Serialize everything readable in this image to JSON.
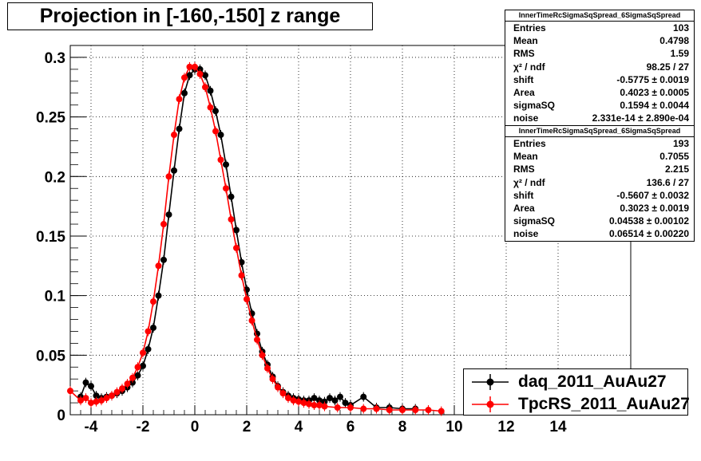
{
  "header": {
    "title": "Projection in [-160,-150] z range"
  },
  "stats_boxes": [
    {
      "name": "InnerTimeRcSigmaSqSpread_6SigmaSqSpread",
      "rows": [
        {
          "label": "Entries",
          "value": "103"
        },
        {
          "label": "Mean",
          "value": "0.4798"
        },
        {
          "label": "RMS",
          "value": "1.59"
        },
        {
          "label": "χ² / ndf",
          "value": "98.25 / 27"
        },
        {
          "label": "shift",
          "value": "-0.5775 ± 0.0019"
        },
        {
          "label": "Area",
          "value": "0.4023 ± 0.0005"
        },
        {
          "label": "sigmaSQ",
          "value": "0.1594 ± 0.0044"
        },
        {
          "label": "noise",
          "value": "2.331e-14 ± 2.890e-04"
        }
      ]
    },
    {
      "name": "InnerTimeRcSigmaSqSpread_6SigmaSqSpread",
      "rows": [
        {
          "label": "Entries",
          "value": "193"
        },
        {
          "label": "Mean",
          "value": "0.7055"
        },
        {
          "label": "RMS",
          "value": "2.215"
        },
        {
          "label": "χ² / ndf",
          "value": "136.6 / 27"
        },
        {
          "label": "shift",
          "value": "-0.5607 ± 0.0032"
        },
        {
          "label": "Area",
          "value": "0.3023 ± 0.0019"
        },
        {
          "label": "sigmaSQ",
          "value": "0.04538 ± 0.00102"
        },
        {
          "label": "noise",
          "value": "0.06514 ± 0.00220"
        }
      ]
    }
  ],
  "legend": [
    {
      "label": "daq_2011_AuAu27",
      "color": "#000000"
    },
    {
      "label": "TpcRS_2011_AuAu27",
      "color": "#ff0000"
    }
  ],
  "chart_data": {
    "type": "scatter",
    "title": "Projection in [-160,-150] z range",
    "xlim": [
      -4.8,
      16.8
    ],
    "ylim": [
      0,
      0.31
    ],
    "x_ticks": [
      -4,
      -2,
      0,
      2,
      4,
      6,
      8,
      10,
      12,
      14
    ],
    "x_tick_labels": [
      "-4",
      "-2",
      "0",
      "2",
      "4",
      "6",
      "8",
      "10",
      "12",
      "14"
    ],
    "y_ticks": [
      0,
      0.05,
      0.1,
      0.15,
      0.2,
      0.25,
      0.3
    ],
    "y_tick_labels": [
      "0",
      "0.05",
      "0.1",
      "0.15",
      "0.2",
      "0.25",
      "0.3"
    ],
    "grid": true,
    "legend_position": "bottom-right",
    "series": [
      {
        "name": "daq_2011_AuAu27",
        "color": "#000000",
        "x": [
          -4.4,
          -4.2,
          -4.0,
          -3.8,
          -3.6,
          -3.4,
          -3.2,
          -3.0,
          -2.8,
          -2.6,
          -2.4,
          -2.2,
          -2.0,
          -1.8,
          -1.6,
          -1.4,
          -1.2,
          -1.0,
          -0.8,
          -0.6,
          -0.4,
          -0.2,
          0.0,
          0.2,
          0.4,
          0.6,
          0.8,
          1.0,
          1.2,
          1.4,
          1.6,
          1.8,
          2.0,
          2.2,
          2.4,
          2.6,
          2.8,
          3.0,
          3.2,
          3.4,
          3.6,
          3.8,
          4.0,
          4.2,
          4.4,
          4.6,
          4.8,
          5.0,
          5.2,
          5.4,
          5.6,
          5.8,
          6.0,
          6.5,
          7.0,
          7.5,
          8.0,
          8.5
        ],
        "y": [
          0.015,
          0.027,
          0.024,
          0.016,
          0.014,
          0.015,
          0.016,
          0.018,
          0.02,
          0.023,
          0.027,
          0.033,
          0.041,
          0.055,
          0.073,
          0.1,
          0.13,
          0.168,
          0.205,
          0.24,
          0.27,
          0.285,
          0.29,
          0.29,
          0.285,
          0.272,
          0.255,
          0.235,
          0.21,
          0.183,
          0.155,
          0.128,
          0.105,
          0.085,
          0.068,
          0.053,
          0.042,
          0.032,
          0.024,
          0.019,
          0.016,
          0.014,
          0.013,
          0.012,
          0.012,
          0.014,
          0.012,
          0.011,
          0.014,
          0.012,
          0.015,
          0.01,
          0.008,
          0.015,
          0.006,
          0.006,
          0.005,
          0.005
        ]
      },
      {
        "name": "TpcRS_2011_AuAu27",
        "color": "#ff0000",
        "x": [
          -4.8,
          -4.4,
          -4.2,
          -4.0,
          -3.8,
          -3.6,
          -3.4,
          -3.2,
          -3.0,
          -2.8,
          -2.6,
          -2.4,
          -2.2,
          -2.0,
          -1.8,
          -1.6,
          -1.4,
          -1.2,
          -1.0,
          -0.8,
          -0.6,
          -0.4,
          -0.2,
          0.0,
          0.2,
          0.4,
          0.6,
          0.8,
          1.0,
          1.2,
          1.4,
          1.6,
          1.8,
          2.0,
          2.2,
          2.4,
          2.6,
          2.8,
          3.0,
          3.2,
          3.4,
          3.6,
          3.8,
          4.0,
          4.2,
          4.4,
          4.6,
          4.8,
          5.0,
          5.5,
          6.0,
          6.5,
          7.0,
          7.5,
          8.0,
          8.5,
          9.0,
          9.5
        ],
        "y": [
          0.02,
          0.012,
          0.014,
          0.01,
          0.011,
          0.012,
          0.014,
          0.016,
          0.019,
          0.022,
          0.026,
          0.031,
          0.04,
          0.052,
          0.07,
          0.095,
          0.125,
          0.16,
          0.2,
          0.235,
          0.265,
          0.283,
          0.292,
          0.292,
          0.286,
          0.275,
          0.258,
          0.238,
          0.214,
          0.19,
          0.164,
          0.14,
          0.117,
          0.097,
          0.079,
          0.063,
          0.05,
          0.039,
          0.03,
          0.023,
          0.018,
          0.014,
          0.012,
          0.011,
          0.01,
          0.009,
          0.008,
          0.008,
          0.007,
          0.006,
          0.006,
          0.005,
          0.005,
          0.004,
          0.004,
          0.004,
          0.004,
          0.003
        ]
      }
    ]
  }
}
